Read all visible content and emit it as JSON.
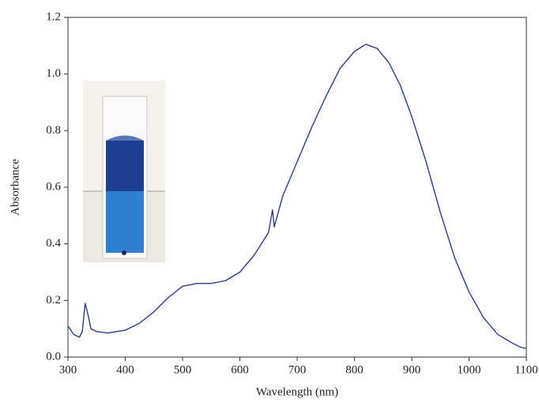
{
  "chart_data": {
    "type": "line",
    "xlabel": "Wavelength (nm)",
    "ylabel": "Absorbance",
    "x": [
      300,
      310,
      320,
      325,
      330,
      335,
      340,
      350,
      370,
      400,
      425,
      450,
      475,
      500,
      525,
      550,
      575,
      600,
      625,
      650,
      657,
      660,
      675,
      700,
      725,
      750,
      775,
      800,
      820,
      840,
      860,
      880,
      900,
      925,
      950,
      975,
      1000,
      1025,
      1050,
      1075,
      1090,
      1100
    ],
    "values": [
      0.11,
      0.08,
      0.07,
      0.09,
      0.19,
      0.15,
      0.1,
      0.09,
      0.085,
      0.095,
      0.12,
      0.16,
      0.21,
      0.25,
      0.26,
      0.26,
      0.27,
      0.3,
      0.36,
      0.44,
      0.52,
      0.46,
      0.57,
      0.69,
      0.81,
      0.92,
      1.02,
      1.08,
      1.105,
      1.09,
      1.04,
      0.96,
      0.85,
      0.69,
      0.51,
      0.35,
      0.23,
      0.14,
      0.08,
      0.05,
      0.035,
      0.03
    ],
    "color": "#2a3d8f",
    "xlim": [
      300,
      1100
    ],
    "xticks": [
      300,
      400,
      500,
      600,
      700,
      800,
      900,
      1000,
      1100
    ],
    "ylim": [
      0,
      1.2
    ],
    "yticks": [
      {
        "value": 0,
        "label": "0.0"
      },
      0.2,
      0.4,
      0.6,
      0.8,
      {
        "value": 1,
        "label": "1.0"
      },
      1.2
    ]
  }
}
